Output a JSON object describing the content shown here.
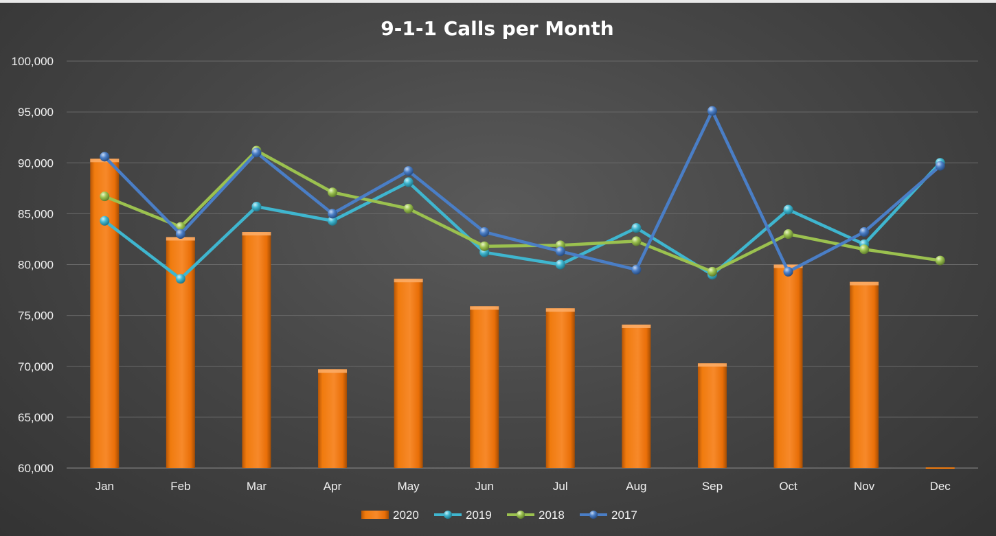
{
  "chart_data": {
    "type": "bar",
    "title": "9-1-1 Calls per Month",
    "xlabel": "",
    "ylabel": "",
    "ylim": [
      60000,
      100000
    ],
    "y_ticks": [
      "60,000",
      "65,000",
      "70,000",
      "75,000",
      "80,000",
      "85,000",
      "90,000",
      "95,000",
      "100,000"
    ],
    "y_tick_values": [
      60000,
      65000,
      70000,
      75000,
      80000,
      85000,
      90000,
      95000,
      100000
    ],
    "categories": [
      "Jan",
      "Feb",
      "Mar",
      "Apr",
      "May",
      "Jun",
      "Jul",
      "Aug",
      "Sep",
      "Oct",
      "Nov",
      "Dec"
    ],
    "grid": true,
    "legend_position": "bottom",
    "series": [
      {
        "name": "2020",
        "type": "bar",
        "color": "#f07b0e",
        "values": [
          90400,
          82700,
          83200,
          69700,
          78600,
          75900,
          75700,
          74100,
          70300,
          80000,
          78300,
          60000
        ]
      },
      {
        "name": "2019",
        "type": "line",
        "color": "#3fb6cf",
        "values": [
          84300,
          78600,
          85700,
          84300,
          88100,
          81200,
          80000,
          83600,
          79000,
          85400,
          82000,
          90000
        ]
      },
      {
        "name": "2018",
        "type": "line",
        "color": "#9bc14f",
        "values": [
          86700,
          83700,
          91200,
          87100,
          85500,
          81800,
          81900,
          82300,
          79300,
          83000,
          81500,
          80400
        ]
      },
      {
        "name": "2017",
        "type": "line",
        "color": "#4a7ec6",
        "values": [
          90600,
          83000,
          91000,
          85000,
          89200,
          83200,
          81300,
          79500,
          95100,
          79300,
          83200,
          89700
        ]
      }
    ]
  }
}
